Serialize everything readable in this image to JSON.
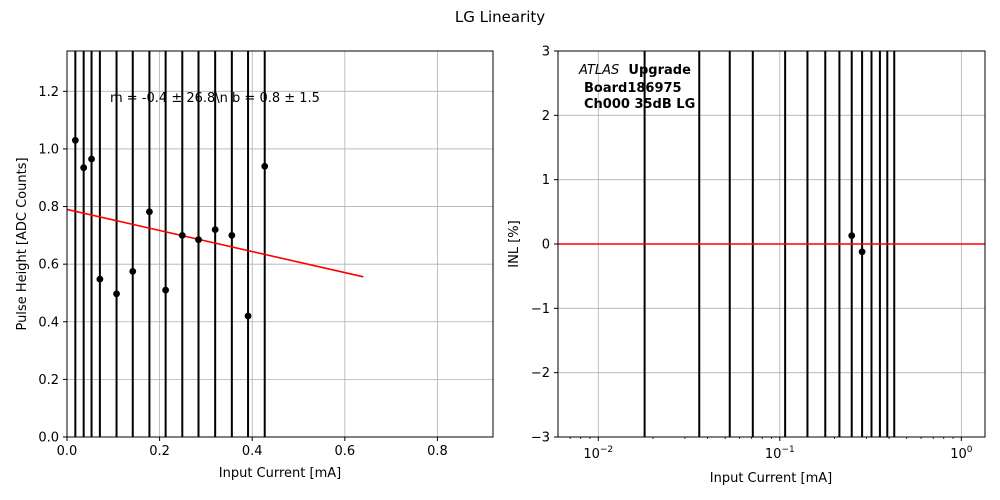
{
  "figure_title": "LG Linearity",
  "chart_data": [
    {
      "type": "scatter",
      "title": "",
      "xlabel": "Input Current [mA]",
      "ylabel": "Pulse Height [ADC Counts]",
      "xlim": [
        0.0,
        0.92
      ],
      "ylim": [
        0.0,
        1.34
      ],
      "x_ticks": [
        0.0,
        0.2,
        0.4,
        0.6,
        0.8
      ],
      "x_tick_labels": [
        "0.0",
        "0.2",
        "0.4",
        "0.6",
        "0.8"
      ],
      "y_ticks": [
        0.0,
        0.2,
        0.4,
        0.6,
        0.8,
        1.0,
        1.2
      ],
      "y_tick_labels": [
        "0.0",
        "0.2",
        "0.4",
        "0.6",
        "0.8",
        "1.0",
        "1.2"
      ],
      "grid": true,
      "annotation": "m = -0.4 ± 26.8\\n b = 0.8 ± 1.5",
      "points": [
        {
          "x": 0.018,
          "y": 1.03
        },
        {
          "x": 0.036,
          "y": 0.935
        },
        {
          "x": 0.053,
          "y": 0.965
        },
        {
          "x": 0.071,
          "y": 0.548
        },
        {
          "x": 0.107,
          "y": 0.497
        },
        {
          "x": 0.142,
          "y": 0.575
        },
        {
          "x": 0.178,
          "y": 0.782
        },
        {
          "x": 0.213,
          "y": 0.51
        },
        {
          "x": 0.249,
          "y": 0.7
        },
        {
          "x": 0.284,
          "y": 0.685
        },
        {
          "x": 0.32,
          "y": 0.72
        },
        {
          "x": 0.356,
          "y": 0.7
        },
        {
          "x": 0.391,
          "y": 0.42
        },
        {
          "x": 0.427,
          "y": 0.94
        }
      ],
      "fit_line": {
        "x": [
          0.0,
          0.64
        ],
        "y": [
          0.79,
          0.556
        ],
        "color": "#ff0000"
      },
      "marker_color": "#000000"
    },
    {
      "type": "scatter",
      "title": "",
      "xlabel": "Input Current [mA]",
      "ylabel": "INL [%]",
      "xscale": "log",
      "xlim": [
        0.006,
        1.35
      ],
      "ylim": [
        -3,
        3
      ],
      "x_ticks": [
        0.01,
        0.1,
        1
      ],
      "x_tick_labels": [
        "10−2",
        "10−1",
        "100"
      ],
      "y_ticks": [
        -3,
        -2,
        -1,
        0,
        1,
        2,
        3
      ],
      "y_tick_labels": [
        "−3",
        "−2",
        "−1",
        "0",
        "1",
        "2",
        "3"
      ],
      "grid": true,
      "reference_line": {
        "y": 0,
        "color": "#ff0000"
      },
      "annotation": {
        "atlas_italic": "ATLAS",
        "atlas_bold": "Upgrade",
        "line2": "Board186975",
        "line3": "Ch000 35dB LG"
      },
      "points": [
        {
          "x": 0.249,
          "y": 0.13
        },
        {
          "x": 0.284,
          "y": -0.12
        }
      ],
      "error_bar_x": [
        0.018,
        0.036,
        0.053,
        0.071,
        0.107,
        0.142,
        0.178,
        0.213,
        0.249,
        0.284,
        0.32,
        0.356,
        0.391,
        0.427
      ],
      "marker_color": "#000000"
    }
  ]
}
